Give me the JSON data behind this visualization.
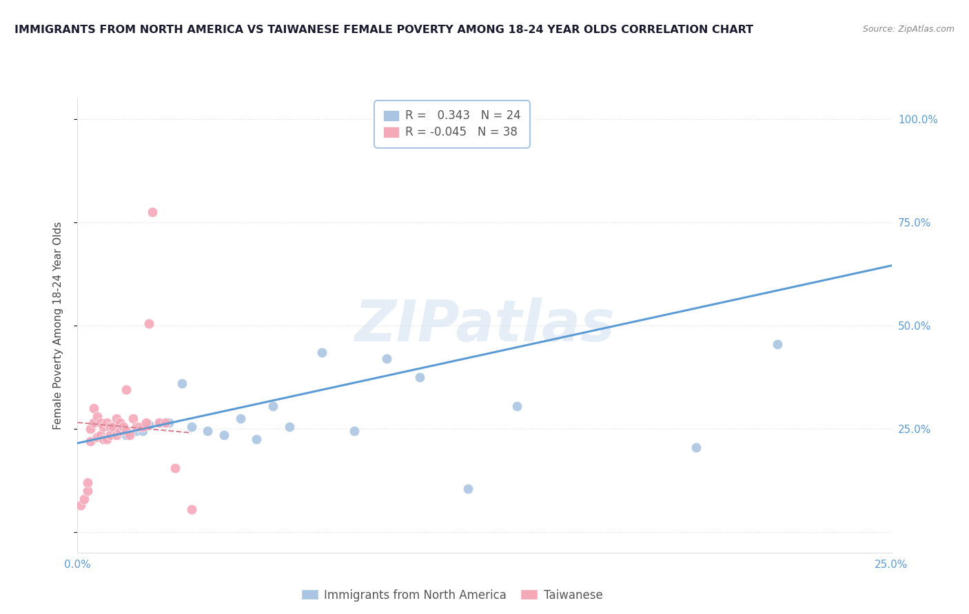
{
  "title": "IMMIGRANTS FROM NORTH AMERICA VS TAIWANESE FEMALE POVERTY AMONG 18-24 YEAR OLDS CORRELATION CHART",
  "source": "Source: ZipAtlas.com",
  "ylabel": "Female Poverty Among 18-24 Year Olds",
  "xlim": [
    0.0,
    0.25
  ],
  "ylim": [
    -0.05,
    1.05
  ],
  "ytick_values": [
    0.0,
    0.25,
    0.5,
    0.75,
    1.0
  ],
  "ytick_labels": [
    "",
    "25.0%",
    "50.0%",
    "75.0%",
    "100.0%"
  ],
  "xtick_values": [
    0.0,
    0.05,
    0.1,
    0.15,
    0.2,
    0.25
  ],
  "xtick_labels": [
    "0.0%",
    "",
    "",
    "",
    "",
    "25.0%"
  ],
  "blue_R": "0.343",
  "blue_N": "24",
  "pink_R": "-0.045",
  "pink_N": "38",
  "blue_scatter_x": [
    0.005,
    0.01,
    0.015,
    0.018,
    0.02,
    0.022,
    0.025,
    0.028,
    0.032,
    0.035,
    0.04,
    0.045,
    0.05,
    0.055,
    0.06,
    0.065,
    0.075,
    0.085,
    0.095,
    0.105,
    0.12,
    0.135,
    0.19,
    0.215
  ],
  "blue_scatter_y": [
    0.265,
    0.255,
    0.235,
    0.245,
    0.245,
    0.26,
    0.265,
    0.265,
    0.36,
    0.255,
    0.245,
    0.235,
    0.275,
    0.225,
    0.305,
    0.255,
    0.435,
    0.245,
    0.42,
    0.375,
    0.105,
    0.305,
    0.205,
    0.455
  ],
  "blue_line_x": [
    0.0,
    0.25
  ],
  "blue_line_y": [
    0.215,
    0.645
  ],
  "pink_scatter_x": [
    0.001,
    0.002,
    0.003,
    0.003,
    0.004,
    0.004,
    0.005,
    0.005,
    0.006,
    0.006,
    0.007,
    0.007,
    0.008,
    0.008,
    0.009,
    0.009,
    0.01,
    0.01,
    0.011,
    0.012,
    0.012,
    0.013,
    0.013,
    0.014,
    0.015,
    0.015,
    0.016,
    0.017,
    0.018,
    0.019,
    0.02,
    0.021,
    0.022,
    0.023,
    0.025,
    0.027,
    0.03,
    0.035
  ],
  "pink_scatter_y": [
    0.065,
    0.08,
    0.1,
    0.12,
    0.22,
    0.25,
    0.265,
    0.3,
    0.28,
    0.23,
    0.265,
    0.235,
    0.255,
    0.225,
    0.265,
    0.225,
    0.255,
    0.235,
    0.255,
    0.275,
    0.235,
    0.265,
    0.245,
    0.255,
    0.345,
    0.245,
    0.235,
    0.275,
    0.255,
    0.255,
    0.255,
    0.265,
    0.505,
    0.775,
    0.265,
    0.265,
    0.155,
    0.055
  ],
  "pink_line_x": [
    0.0,
    0.035
  ],
  "pink_line_y": [
    0.265,
    0.24
  ],
  "blue_color": "#aac5e2",
  "pink_color": "#f5a8b8",
  "blue_line_color": "#5b9bd5",
  "pink_line_color": "#d98090",
  "watermark_text": "ZIPatlas",
  "background_color": "#ffffff",
  "grid_color": "#dddddd",
  "tick_color": "#5b9bd5",
  "title_color": "#1a1a2e",
  "ylabel_color": "#444444"
}
